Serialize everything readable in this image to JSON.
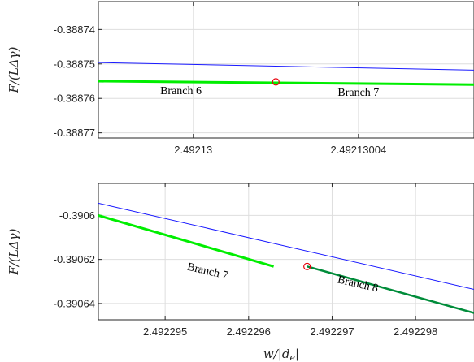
{
  "chart_data": [
    {
      "type": "line",
      "xlim": [
        2.492129977,
        2.492130068
      ],
      "ylim": [
        -0.3887715,
        -0.3887319
      ],
      "xticks": [
        2.49213,
        2.49213004
      ],
      "xtick_labels": [
        "2.49213",
        "2.49213004"
      ],
      "yticks": [
        -0.38874,
        -0.38875,
        -0.38876,
        -0.38877
      ],
      "ytick_labels": [
        "-0.38874",
        "-0.38875",
        "-0.38876",
        "-0.38877"
      ],
      "xlabel": "",
      "ylabel": "F/(LΔγ)",
      "grid": true,
      "colors": {
        "blue": "#1a1aff",
        "green": "#00ee00",
        "marker": "#e8000b"
      },
      "series": [
        {
          "color": "#1a1aff",
          "width": 1,
          "x": [
            2.492129977,
            2.492130068
          ],
          "y": [
            -0.3887496,
            -0.3887518
          ]
        },
        {
          "color": "#00ee00",
          "width": 3,
          "x": [
            2.492129977,
            2.492130068
          ],
          "y": [
            -0.388755,
            -0.388756
          ]
        }
      ],
      "markers": [
        {
          "x": 2.49213002,
          "y": -0.3887552
        }
      ],
      "annotations": [
        {
          "text": "Branch 6",
          "x": 2.492129997,
          "y": -0.3887588
        },
        {
          "text": "Branch 7",
          "x": 2.49213004,
          "y": -0.3887592
        }
      ]
    },
    {
      "type": "line",
      "xlim": [
        2.4922942,
        2.4922987
      ],
      "ylim": [
        -0.3906474,
        -0.3905855
      ],
      "xticks": [
        2.492295,
        2.492296,
        2.492297,
        2.492298
      ],
      "xtick_labels": [
        "2.492295",
        "2.492296",
        "2.492297",
        "2.492298"
      ],
      "yticks": [
        -0.3906,
        -0.39062,
        -0.39064
      ],
      "ytick_labels": [
        "-0.3906",
        "-0.39062",
        "-0.39064"
      ],
      "xlabel": "w/|d_e|",
      "ylabel": "F/(LΔγ)",
      "grid": true,
      "series": [
        {
          "color": "#1a1aff",
          "width": 1,
          "x": [
            2.4922942,
            2.4922987
          ],
          "y": [
            -0.3905945,
            -0.3906336
          ]
        },
        {
          "color": "#00ee00",
          "width": 3,
          "x": [
            2.4922942,
            2.4922963
          ],
          "y": [
            -0.3906,
            -0.3906232
          ]
        },
        {
          "color": "#008c3a",
          "width": 2.5,
          "x": [
            2.4922967,
            2.4922987
          ],
          "y": [
            -0.3906232,
            -0.3906443
          ]
        }
      ],
      "markers": [
        {
          "x": 2.4922967,
          "y": -0.3906232
        }
      ],
      "annotations": [
        {
          "text": "Branch 7",
          "x": 2.4922955,
          "y": -0.3906268,
          "rotate": 13
        },
        {
          "text": "Branch 8",
          "x": 2.4922973,
          "y": -0.3906326,
          "rotate": 13
        }
      ]
    }
  ]
}
